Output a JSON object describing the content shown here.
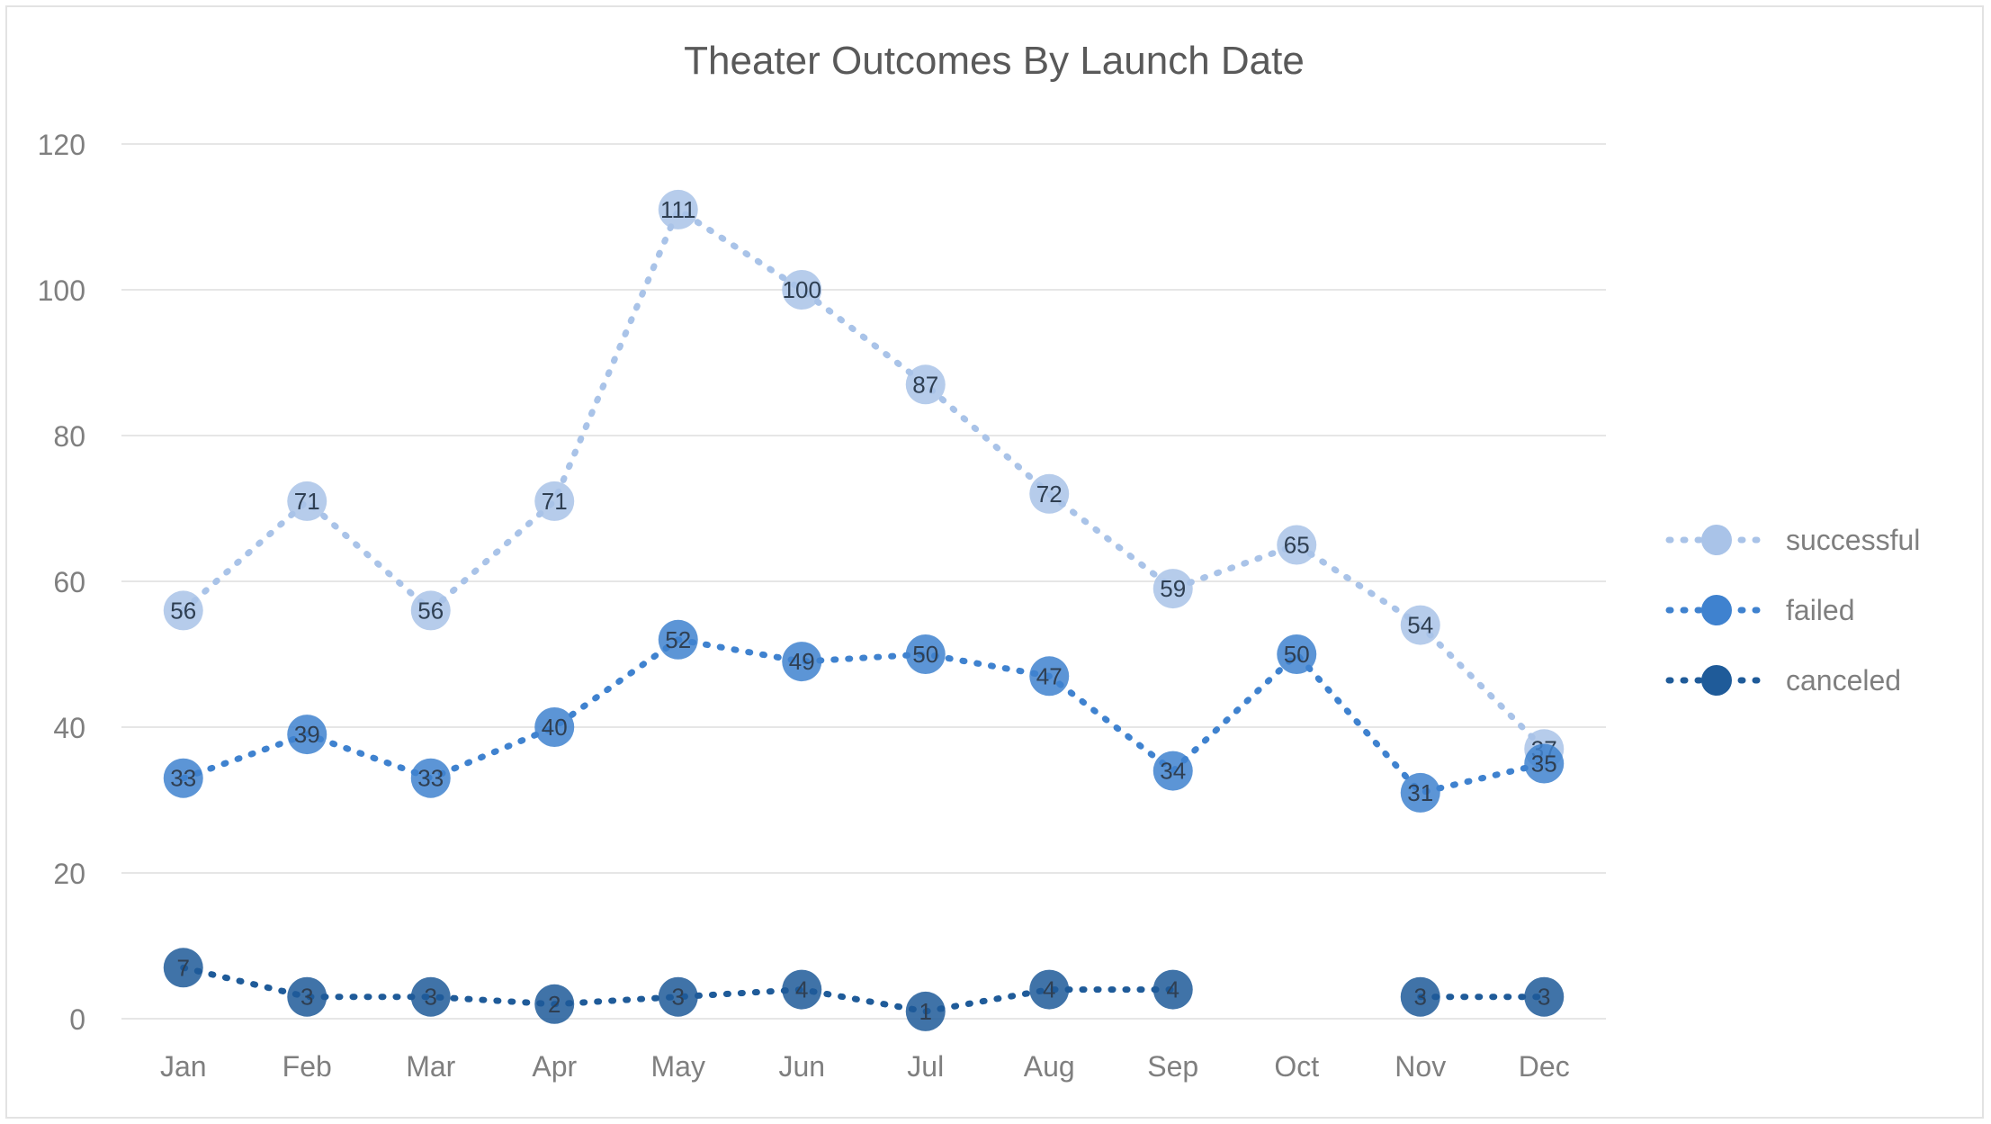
{
  "chart_data": {
    "type": "line",
    "title": "Theater Outcomes By Launch Date",
    "xlabel": "",
    "ylabel": "",
    "categories": [
      "Jan",
      "Feb",
      "Mar",
      "Apr",
      "May",
      "Jun",
      "Jul",
      "Aug",
      "Sep",
      "Oct",
      "Nov",
      "Dec"
    ],
    "ylim": [
      0,
      120
    ],
    "yticks": [
      "0",
      "20",
      "40",
      "60",
      "80",
      "100",
      "120"
    ],
    "grid": true,
    "legend_position": "right",
    "series": [
      {
        "name": "successful",
        "color": "#a9c3e8",
        "values": [
          56,
          71,
          56,
          71,
          111,
          100,
          87,
          72,
          59,
          65,
          54,
          37
        ]
      },
      {
        "name": "failed",
        "color": "#3f82cf",
        "values": [
          33,
          39,
          33,
          40,
          52,
          49,
          50,
          47,
          34,
          50,
          31,
          35
        ]
      },
      {
        "name": "canceled",
        "color": "#1f5b99",
        "values": [
          7,
          3,
          3,
          2,
          3,
          4,
          1,
          4,
          4,
          null,
          3,
          3
        ]
      }
    ]
  }
}
